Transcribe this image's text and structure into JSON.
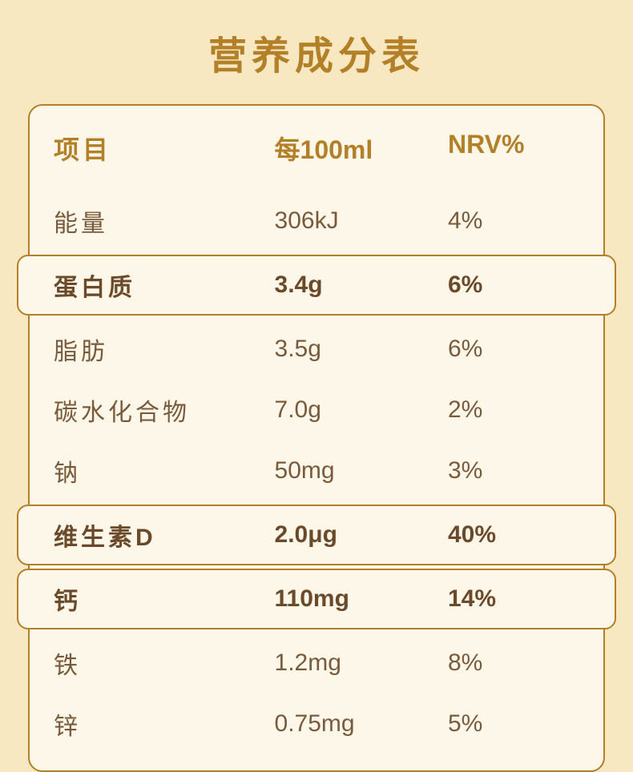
{
  "title": "营养成分表",
  "table": {
    "headers": {
      "col1": "项目",
      "col2": "每100ml",
      "col3": "NRV%"
    },
    "rows": [
      {
        "name": "能量",
        "per100ml": "306kJ",
        "nrv": "4%",
        "highlight": false
      },
      {
        "name": "蛋白质",
        "per100ml": "3.4g",
        "nrv": "6%",
        "highlight": true
      },
      {
        "name": "脂肪",
        "per100ml": "3.5g",
        "nrv": "6%",
        "highlight": false
      },
      {
        "name": "碳水化合物",
        "per100ml": "7.0g",
        "nrv": "2%",
        "highlight": false
      },
      {
        "name": "钠",
        "per100ml": "50mg",
        "nrv": "3%",
        "highlight": false
      },
      {
        "name": "维生素D",
        "per100ml": "2.0μg",
        "nrv": "40%",
        "highlight": true
      },
      {
        "name": "钙",
        "per100ml": "110mg",
        "nrv": "14%",
        "highlight": true
      },
      {
        "name": "铁",
        "per100ml": "1.2mg",
        "nrv": "8%",
        "highlight": false
      },
      {
        "name": "锌",
        "per100ml": "0.75mg",
        "nrv": "5%",
        "highlight": false
      }
    ]
  },
  "style": {
    "background_color": "#f7e8c2",
    "table_bg": "#fdf7ea",
    "border_color": "#b38028",
    "title_color": "#b38028",
    "header_color": "#b38028",
    "text_color": "#795b3c",
    "bold_text_color": "#6b4a2a",
    "title_fontsize": 48,
    "header_fontsize": 32,
    "cell_fontsize": 30,
    "border_radius": 18,
    "highlight_radius": 14
  }
}
